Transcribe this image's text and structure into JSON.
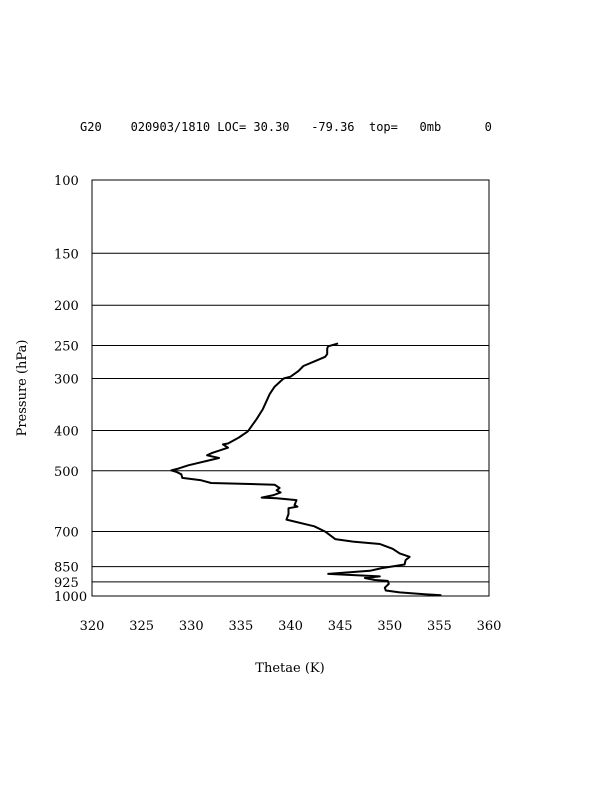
{
  "header": {
    "line": "G20    020903/1810 LOC= 30.30   -79.36  top=   0mb      0"
  },
  "chart_data": {
    "type": "line",
    "title": "",
    "xlabel": "Thetae (K)",
    "ylabel": "Pressure (hPa)",
    "xlim": [
      320,
      360
    ],
    "ylim": [
      1000,
      100
    ],
    "y_scale": "log",
    "grid": "horizontal lines at pressure ticks",
    "x_ticks": [
      320,
      325,
      330,
      335,
      340,
      345,
      350,
      355,
      360
    ],
    "y_ticks": [
      100,
      150,
      200,
      250,
      300,
      400,
      500,
      700,
      850,
      925,
      1000
    ],
    "series": [
      {
        "color": "#000000",
        "points": [
          [
            344.8,
            247
          ],
          [
            343.8,
            251
          ],
          [
            343.7,
            254
          ],
          [
            343.7,
            262
          ],
          [
            343.5,
            266
          ],
          [
            342.4,
            273
          ],
          [
            341.3,
            280
          ],
          [
            340.8,
            288
          ],
          [
            340.0,
            297
          ],
          [
            339.3,
            300
          ],
          [
            338.4,
            314
          ],
          [
            337.9,
            327
          ],
          [
            337.2,
            356
          ],
          [
            336.6,
            375
          ],
          [
            335.7,
            402
          ],
          [
            334.8,
            416
          ],
          [
            333.7,
            430
          ],
          [
            333.2,
            432
          ],
          [
            333.7,
            440
          ],
          [
            332.1,
            453
          ],
          [
            331.6,
            459
          ],
          [
            332.8,
            466
          ],
          [
            329.7,
            485
          ],
          [
            328.7,
            494
          ],
          [
            328.0,
            499
          ],
          [
            328.5,
            503
          ],
          [
            329.0,
            510
          ],
          [
            329.1,
            520
          ],
          [
            331.0,
            527
          ],
          [
            332.0,
            535
          ],
          [
            338.4,
            540
          ],
          [
            338.9,
            550
          ],
          [
            338.6,
            557
          ],
          [
            339.0,
            564
          ],
          [
            338.3,
            572
          ],
          [
            337.1,
            580
          ],
          [
            338.6,
            582
          ],
          [
            340.6,
            588
          ],
          [
            340.4,
            605
          ],
          [
            340.7,
            610
          ],
          [
            339.8,
            615
          ],
          [
            339.8,
            635
          ],
          [
            339.6,
            655
          ],
          [
            342.4,
            680
          ],
          [
            343.5,
            700
          ],
          [
            344.5,
            730
          ],
          [
            346.3,
            740
          ],
          [
            349.0,
            750
          ],
          [
            350.3,
            770
          ],
          [
            351.0,
            790
          ],
          [
            352.0,
            805
          ],
          [
            351.6,
            820
          ],
          [
            351.5,
            840
          ],
          [
            349.2,
            857
          ],
          [
            348.0,
            870
          ],
          [
            343.8,
            885
          ],
          [
            349.0,
            897
          ],
          [
            347.5,
            905
          ],
          [
            348.5,
            915
          ],
          [
            349.8,
            920
          ],
          [
            349.9,
            935
          ],
          [
            349.5,
            955
          ],
          [
            349.6,
            970
          ],
          [
            351.0,
            980
          ],
          [
            353.5,
            990
          ],
          [
            355.2,
            996
          ]
        ]
      }
    ]
  }
}
